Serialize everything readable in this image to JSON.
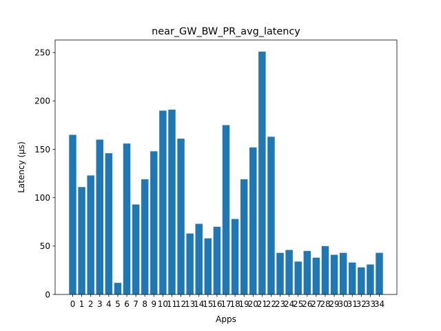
{
  "chart_data": {
    "type": "bar",
    "title": "near_GW_BW_PR_avg_latency",
    "xlabel": "Apps",
    "ylabel": "Latency (µs)",
    "categories": [
      "0",
      "1",
      "2",
      "3",
      "4",
      "5",
      "6",
      "7",
      "8",
      "9",
      "10",
      "11",
      "12",
      "13",
      "14",
      "15",
      "16",
      "17",
      "18",
      "19",
      "20",
      "21",
      "22",
      "23",
      "24",
      "25",
      "26",
      "27",
      "28",
      "29",
      "30",
      "31",
      "32",
      "33",
      "34"
    ],
    "values": [
      165,
      111,
      123,
      160,
      146,
      12,
      156,
      93,
      119,
      148,
      190,
      191,
      161,
      63,
      73,
      58,
      70,
      175,
      78,
      119,
      152,
      251,
      163,
      43,
      46,
      34,
      45,
      38,
      50,
      41,
      43,
      33,
      28,
      31,
      43
    ],
    "yticks": [
      "0",
      "50",
      "100",
      "150",
      "200",
      "250"
    ],
    "ylim": [
      0,
      263
    ],
    "bar_color": "#1f77b4",
    "grid": false,
    "legend": false
  }
}
